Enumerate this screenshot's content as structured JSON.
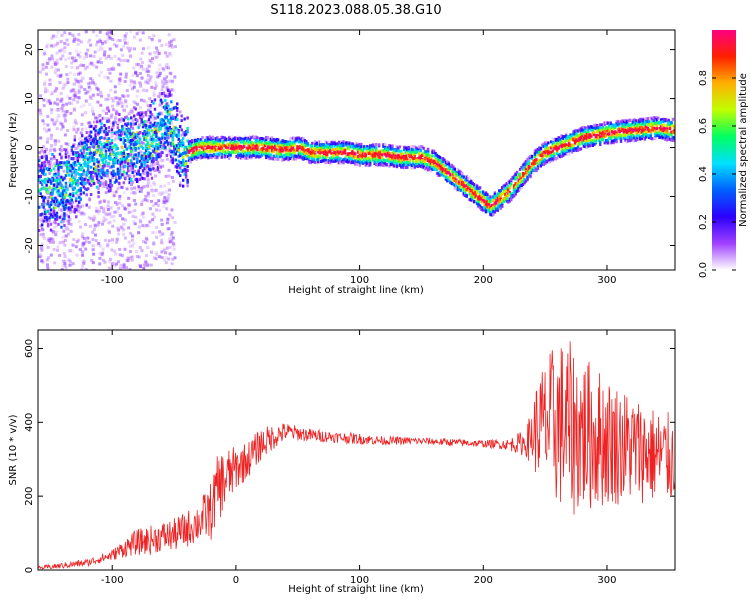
{
  "title": "S118.2023.088.05.38.G10",
  "chart_data": [
    {
      "type": "heatmap",
      "xlabel": "Height of straight line (km)",
      "ylabel": "Frequency (Hz)",
      "xlim": [
        -160,
        355
      ],
      "ylim": [
        -25,
        24
      ],
      "xticks": [
        -100,
        0,
        100,
        200,
        300
      ],
      "yticks": [
        -20,
        -10,
        0,
        10,
        20
      ],
      "colorbar": {
        "label": "Normalized spectral amplitude",
        "range": [
          0.0,
          1.0
        ],
        "ticks": [
          0.0,
          0.2,
          0.4,
          0.6,
          0.8
        ],
        "colormap": [
          "#ffffff",
          "#a040ff",
          "#2a00ff",
          "#0060ff",
          "#00e0ff",
          "#00ff60",
          "#c0ff00",
          "#ffb000",
          "#ff2000",
          "#ff0080"
        ]
      },
      "ridge": {
        "x": [
          -160,
          -140,
          -120,
          -100,
          -85,
          -75,
          -65,
          -57,
          -50,
          -45,
          -40,
          -30,
          -20,
          0,
          20,
          40,
          50,
          60,
          70,
          80,
          90,
          100,
          110,
          120,
          130,
          140,
          150,
          160,
          170,
          180,
          190,
          200,
          205,
          210,
          220,
          230,
          240,
          250,
          260,
          270,
          280,
          300,
          320,
          340,
          355
        ],
        "y": [
          -9,
          -8,
          -3,
          -1,
          0,
          0,
          2,
          6,
          3,
          -1,
          -1,
          0,
          0,
          0,
          0,
          -0.5,
          0,
          -1,
          -1,
          -1,
          -1,
          -1.5,
          -1.5,
          -1.5,
          -2,
          -2,
          -2,
          -3,
          -5,
          -7,
          -9,
          -11,
          -12,
          -11,
          -9,
          -6,
          -3,
          -1,
          0,
          1,
          2,
          3,
          3.5,
          4,
          3.5
        ]
      }
    },
    {
      "type": "line",
      "xlabel": "Height of straight line (km)",
      "ylabel": "SNR (10 * v/v)",
      "xlim": [
        -160,
        355
      ],
      "ylim": [
        0,
        650
      ],
      "xticks": [
        -100,
        0,
        100,
        200,
        300
      ],
      "yticks": [
        0,
        200,
        400,
        600
      ],
      "series": [
        {
          "color": "#ee2222",
          "x": [
            -160,
            -140,
            -120,
            -110,
            -100,
            -90,
            -80,
            -70,
            -60,
            -50,
            -40,
            -30,
            -20,
            -15,
            -10,
            0,
            10,
            20,
            30,
            40,
            50,
            60,
            80,
            100,
            120,
            140,
            160,
            180,
            200,
            220,
            235,
            245,
            260,
            270,
            280,
            300,
            320,
            340,
            355
          ],
          "values": [
            5,
            12,
            20,
            30,
            40,
            60,
            75,
            80,
            90,
            95,
            110,
            130,
            160,
            220,
            240,
            275,
            300,
            340,
            360,
            375,
            370,
            365,
            360,
            355,
            350,
            350,
            348,
            345,
            342,
            340,
            345,
            390,
            400,
            380,
            370,
            350,
            330,
            310,
            300
          ],
          "noise": [
            5,
            8,
            10,
            12,
            15,
            25,
            35,
            40,
            40,
            45,
            50,
            55,
            80,
            90,
            90,
            60,
            50,
            45,
            35,
            25,
            20,
            18,
            15,
            15,
            12,
            10,
            10,
            10,
            10,
            15,
            40,
            150,
            230,
            240,
            220,
            180,
            150,
            130,
            120
          ]
        }
      ]
    }
  ]
}
